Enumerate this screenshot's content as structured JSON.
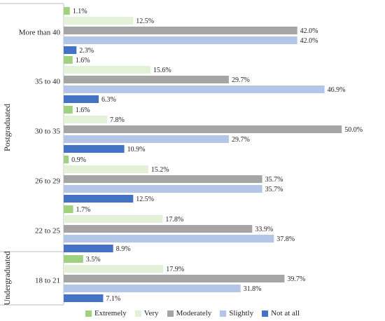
{
  "chart_data": {
    "type": "bar",
    "orientation": "horizontal",
    "title": "",
    "xlabel": "",
    "ylabel": "",
    "xlim": [
      0,
      54
    ],
    "grid": false,
    "legend_position": "bottom",
    "categories": [
      "More than 40",
      "35 to 40",
      "30 to 35",
      "26 to 29",
      "22 to 25",
      "18 to 21"
    ],
    "groups": [
      {
        "label": "Postgraduated",
        "categories": [
          "More than 40",
          "35 to 40",
          "30 to 35",
          "26 to 29",
          "22 to 25"
        ]
      },
      {
        "label": "Undergraduated",
        "categories": [
          "18 to 21"
        ]
      }
    ],
    "series": [
      {
        "name": "Extremely",
        "color": "#9fd17e",
        "values": [
          1.1,
          1.6,
          1.6,
          0.9,
          1.7,
          3.5
        ],
        "labels": [
          "1.1%",
          "1.6%",
          "1.6%",
          "0.9%",
          "1.7%",
          "3.5%"
        ]
      },
      {
        "name": "Very",
        "color": "#e3f1d8",
        "values": [
          12.5,
          15.6,
          7.8,
          15.2,
          17.8,
          17.9
        ],
        "labels": [
          "12.5%",
          "15.6%",
          "7.8%",
          "15.2%",
          "17.8%",
          "17.9%"
        ]
      },
      {
        "name": "Moderately",
        "color": "#a5a5a5",
        "values": [
          42.0,
          29.7,
          50.0,
          35.7,
          33.9,
          39.7
        ],
        "labels": [
          "42.0%",
          "29.7%",
          "50.0%",
          "35.7%",
          "33.9%",
          "39.7%"
        ]
      },
      {
        "name": "Slightly",
        "color": "#b4c6e7",
        "values": [
          42.0,
          46.9,
          29.7,
          35.7,
          37.8,
          31.8
        ],
        "labels": [
          "42.0%",
          "46.9%",
          "29.7%",
          "35.7%",
          "37.8%",
          "31.8%"
        ]
      },
      {
        "name": "Not at all",
        "color": "#4472c4",
        "values": [
          2.3,
          6.3,
          10.9,
          12.5,
          8.9,
          7.1
        ],
        "labels": [
          "2.3%",
          "6.3%",
          "10.9%",
          "12.5%",
          "8.9%",
          "7.1%"
        ]
      }
    ]
  }
}
